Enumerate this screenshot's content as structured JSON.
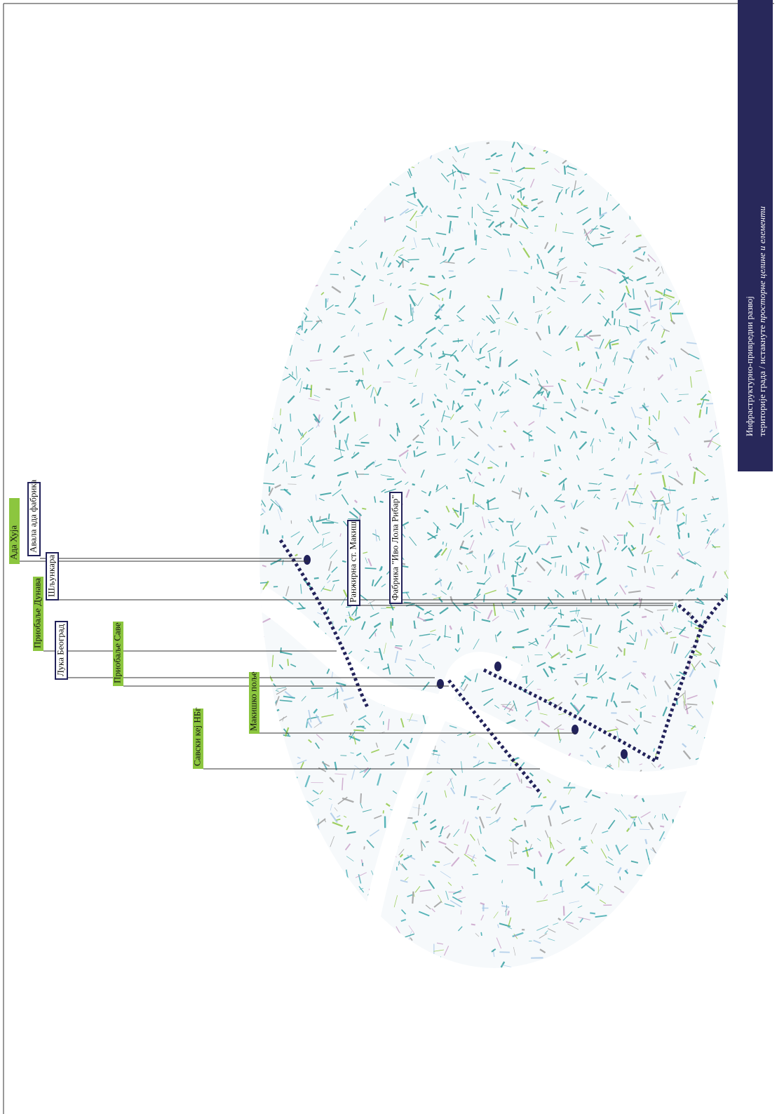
{
  "sidebar": {
    "line1": "Инфраструктурно-привредни развој",
    "line2": "територије града / истакнуте",
    "line2_italic": "просторне целине и елементи"
  },
  "labels": {
    "green": [
      "Ада Хуја",
      "Приобаље Дунава",
      "Приобаље Саве",
      "Макишко поље",
      "Савски кеј НБг"
    ],
    "boxed": [
      "Авала ада фабрика",
      "Шљункара",
      "Лука Београд",
      "Ранжирна ст. Макиш",
      "Фабрика \"Иво Лола Рибар\""
    ]
  }
}
